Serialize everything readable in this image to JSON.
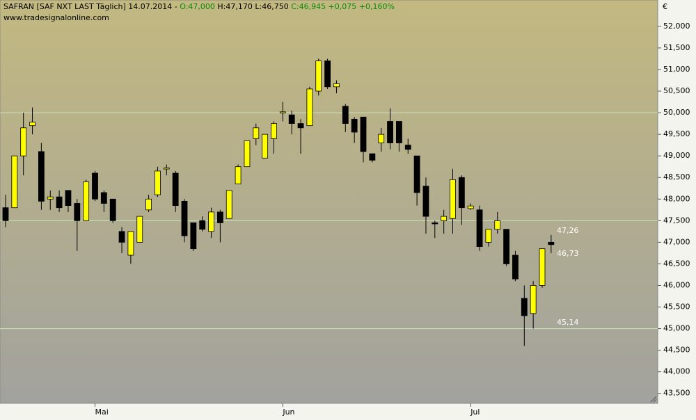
{
  "chart_data": {
    "type": "candlestick",
    "header": [
      "SAFRAN [SAF NXT LAST Täglich] 14.07.2014 - ",
      "O:47,000",
      " H:47,170 L:46,750 ",
      "C:46,945 +0,075 +0,160%"
    ],
    "source": "www.tradesignalonline.com",
    "currency": "€",
    "categories": [
      null,
      null,
      null,
      null,
      null,
      null,
      null,
      null,
      null,
      null,
      "Mai",
      null,
      null,
      null,
      null,
      null,
      null,
      null,
      null,
      null,
      null,
      null,
      null,
      null,
      null,
      null,
      null,
      null,
      null,
      null,
      null,
      "Jun",
      null,
      null,
      null,
      null,
      null,
      null,
      null,
      null,
      null,
      null,
      null,
      null,
      null,
      null,
      null,
      null,
      null,
      null,
      null,
      null,
      "Jul",
      null,
      null,
      null,
      null,
      null,
      null,
      null,
      null,
      null
    ],
    "open": [
      47.8,
      47.8,
      49.0,
      49.7,
      49.1,
      48.0,
      48.05,
      48.2,
      47.9,
      47.5,
      48.6,
      48.15,
      48.0,
      47.25,
      46.7,
      47.0,
      47.75,
      48.1,
      48.7,
      48.6,
      47.95,
      47.45,
      47.5,
      47.25,
      47.7,
      47.55,
      48.35,
      48.75,
      49.4,
      48.95,
      49.4,
      50.0,
      49.95,
      49.75,
      49.7,
      50.5,
      51.2,
      50.6,
      50.15,
      49.85,
      49.9,
      49.05,
      49.3,
      49.8,
      49.8,
      49.25,
      49.0,
      48.3,
      47.45,
      47.5,
      47.55,
      48.5,
      47.78,
      47.75,
      47.0,
      47.3,
      47.3,
      46.7,
      45.7,
      45.35,
      46.0,
      47.0
    ],
    "high": [
      48.1,
      49.0,
      50.0,
      50.12,
      49.3,
      48.2,
      48.2,
      48.2,
      48.0,
      48.45,
      48.65,
      48.2,
      48.0,
      47.35,
      47.25,
      47.6,
      48.1,
      48.75,
      48.8,
      48.65,
      48.0,
      47.45,
      47.6,
      47.8,
      47.75,
      48.2,
      48.8,
      49.35,
      49.75,
      49.5,
      49.8,
      50.25,
      50.05,
      49.85,
      50.6,
      51.25,
      51.25,
      50.75,
      50.2,
      49.9,
      49.9,
      49.05,
      49.65,
      50.1,
      49.8,
      49.4,
      49.0,
      48.5,
      47.5,
      47.75,
      48.7,
      48.55,
      47.9,
      47.85,
      47.3,
      47.7,
      47.3,
      46.8,
      46.0,
      46.1,
      46.85,
      47.17
    ],
    "low": [
      47.35,
      47.8,
      48.55,
      49.5,
      47.75,
      47.75,
      47.7,
      47.7,
      46.8,
      47.5,
      47.95,
      47.7,
      47.45,
      46.75,
      46.5,
      47.0,
      47.7,
      48.05,
      48.55,
      47.7,
      47.0,
      46.8,
      47.25,
      47.1,
      47.0,
      47.55,
      48.35,
      48.75,
      49.25,
      48.95,
      49.05,
      49.8,
      49.5,
      49.05,
      49.7,
      50.4,
      50.55,
      50.45,
      49.55,
      49.3,
      48.85,
      48.85,
      49.1,
      49.15,
      49.1,
      49.05,
      47.85,
      47.2,
      47.1,
      47.2,
      47.2,
      47.4,
      47.75,
      46.8,
      46.9,
      47.2,
      46.45,
      46.1,
      44.6,
      45.0,
      45.95,
      46.75
    ],
    "close": [
      47.5,
      49.0,
      49.65,
      49.78,
      47.95,
      48.05,
      47.8,
      47.85,
      47.5,
      48.4,
      48.0,
      47.9,
      47.5,
      47.0,
      47.25,
      47.6,
      48.0,
      48.65,
      48.72,
      47.85,
      47.15,
      46.85,
      47.3,
      47.7,
      47.45,
      48.2,
      48.75,
      49.35,
      49.65,
      49.5,
      49.75,
      50.02,
      49.75,
      49.65,
      50.55,
      51.2,
      50.6,
      50.67,
      49.75,
      49.55,
      49.1,
      48.9,
      49.5,
      49.3,
      49.3,
      49.15,
      48.15,
      47.6,
      47.43,
      47.6,
      48.45,
      47.8,
      47.84,
      46.9,
      47.3,
      47.5,
      46.5,
      46.15,
      45.3,
      46.0,
      46.85,
      46.945
    ],
    "up_color": "#ffff00",
    "down_color": "#000000",
    "ylim": [
      43.27,
      52.61
    ],
    "yticks": [
      {
        "value": 43.5,
        "label": "43,500"
      },
      {
        "value": 44,
        "label": "44,000"
      },
      {
        "value": 44.5,
        "label": "44,500"
      },
      {
        "value": 45,
        "label": "45,000"
      },
      {
        "value": 45.5,
        "label": "45,500"
      },
      {
        "value": 46,
        "label": "46,000"
      },
      {
        "value": 46.5,
        "label": "46,500"
      },
      {
        "value": 47,
        "label": "47,000"
      },
      {
        "value": 47.5,
        "label": "47,500"
      },
      {
        "value": 48,
        "label": "48,000"
      },
      {
        "value": 48.5,
        "label": "48,500"
      },
      {
        "value": 49,
        "label": "49,000"
      },
      {
        "value": 49.5,
        "label": "49,500"
      },
      {
        "value": 50,
        "label": "50,000"
      },
      {
        "value": 50.5,
        "label": "50,500"
      },
      {
        "value": 51,
        "label": "51,000"
      },
      {
        "value": 51.5,
        "label": "51,500"
      },
      {
        "value": 52,
        "label": "52,000"
      }
    ],
    "hlines": [
      45,
      47.5,
      50
    ],
    "annotations": [
      {
        "text": "47,26",
        "value": 47.26
      },
      {
        "text": "46,73",
        "value": 46.73
      },
      {
        "text": "45,14",
        "value": 45.14
      }
    ]
  }
}
